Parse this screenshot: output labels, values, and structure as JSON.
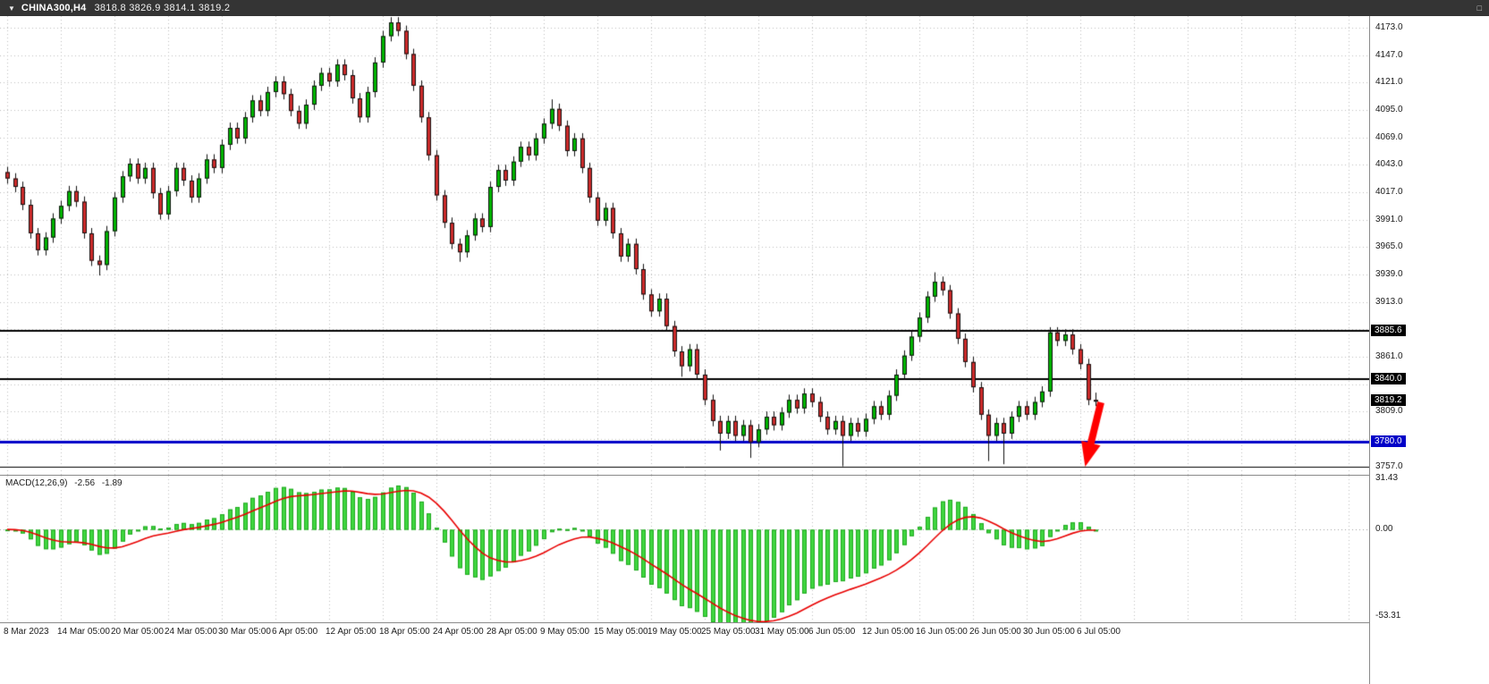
{
  "titlebar": {
    "symbol": "CHINA300,H4",
    "quotes": "3818.8 3826.9 3814.1 3819.2",
    "dropdown_icon": "symbol-dropdown",
    "window_button": "restore"
  },
  "chart_data": [
    {
      "type": "candlestick",
      "title": "CHINA300,H4",
      "timeframe": "H4",
      "x_tick_labels": [
        "8 Mar 2023",
        "14 Mar 05:00",
        "20 Mar 05:00",
        "24 Mar 05:00",
        "30 Mar 05:00",
        "6 Apr 05:00",
        "12 Apr 05:00",
        "18 Apr 05:00",
        "24 Apr 05:00",
        "28 Apr 05:00",
        "9 May 05:00",
        "15 May 05:00",
        "19 May 05:00",
        "25 May 05:00",
        "31 May 05:00",
        "6 Jun 05:00",
        "12 Jun 05:00",
        "16 Jun 05:00",
        "26 Jun 05:00",
        "30 Jun 05:00",
        "6 Jul 05:00"
      ],
      "x_tick_every_bars": 7,
      "y_ticks": [
        4173.0,
        4147.0,
        4121.0,
        4095.0,
        4069.0,
        4043.0,
        4017.0,
        3991.0,
        3965.0,
        3939.0,
        3913.0,
        3887.0,
        3861.0,
        3835.0,
        3809.0,
        3783.0,
        3757.0
      ],
      "ylim": [
        3749.0,
        4184.0
      ],
      "grid": true,
      "first_open": 4036,
      "closes": [
        4030,
        4022,
        4005,
        3978,
        3962,
        3974,
        3992,
        4004,
        4018,
        4008,
        3978,
        3952,
        3948,
        3980,
        4012,
        4032,
        4044,
        4030,
        4040,
        4016,
        3996,
        4018,
        4040,
        4028,
        4012,
        4030,
        4048,
        4040,
        4062,
        4078,
        4068,
        4088,
        4104,
        4094,
        4112,
        4122,
        4110,
        4094,
        4082,
        4100,
        4118,
        4130,
        4122,
        4138,
        4128,
        4106,
        4088,
        4112,
        4140,
        4165,
        4178,
        4170,
        4148,
        4118,
        4088,
        4052,
        4014,
        3988,
        3968,
        3960,
        3976,
        3992,
        3984,
        4022,
        4038,
        4028,
        4046,
        4060,
        4052,
        4068,
        4082,
        4096,
        4080,
        4056,
        4068,
        4040,
        4012,
        3990,
        4002,
        3978,
        3956,
        3968,
        3944,
        3920,
        3904,
        3916,
        3890,
        3866,
        3852,
        3868,
        3844,
        3820,
        3800,
        3788,
        3800,
        3786,
        3796,
        3780,
        3792,
        3804,
        3796,
        3808,
        3820,
        3812,
        3826,
        3818,
        3804,
        3792,
        3800,
        3786,
        3798,
        3790,
        3802,
        3814,
        3806,
        3824,
        3844,
        3862,
        3880,
        3898,
        3918,
        3932,
        3924,
        3902,
        3878,
        3856,
        3832,
        3806,
        3786,
        3798,
        3788,
        3804,
        3814,
        3806,
        3818,
        3828,
        3884,
        3876,
        3882,
        3868,
        3854,
        3820,
        3819.2
      ],
      "wick_overrides": {
        "12": {
          "low": 3938
        },
        "50": {
          "high": 4183
        },
        "59": {
          "low": 3951
        },
        "71": {
          "high": 4105
        },
        "88": {
          "low": 3842
        },
        "93": {
          "low": 3772
        },
        "97": {
          "low": 3765
        },
        "109": {
          "low": 3757
        },
        "121": {
          "high": 3941
        },
        "128": {
          "low": 3762
        },
        "130": {
          "low": 3759
        },
        "136": {
          "high": 3889
        },
        "138": {
          "high": 3887
        },
        "142": {
          "high": 3826.9,
          "low": 3814.1
        }
      },
      "colors": {
        "up": "#00B400",
        "down": "#CC2A2A",
        "outline": "#101010",
        "grid": "#BDBDBD"
      },
      "hlines": [
        {
          "price": 3885.6,
          "color": "#000000",
          "width": 2
        },
        {
          "price": 3840.0,
          "color": "#000000",
          "width": 2
        },
        {
          "price": 3780.0,
          "color": "#0000C8",
          "width": 3
        },
        {
          "price": 3757.0,
          "color": "#000000",
          "width": 1
        }
      ],
      "price_badges": [
        {
          "value": "3885.6",
          "bg": "#000000"
        },
        {
          "value": "3840.0",
          "bg": "#000000"
        },
        {
          "value": "3819.2",
          "bg": "#000000"
        },
        {
          "value": "3780.0",
          "bg": "#0000C8"
        }
      ],
      "annotation_arrow": {
        "color": "#FF0000",
        "x": 1231,
        "y_from": 450,
        "y_to": 524,
        "tilt_rad": 0.24
      }
    },
    {
      "type": "bar+line",
      "name": "MACD(12,26,9)",
      "params": {
        "fast": 12,
        "slow": 26,
        "signal": 9
      },
      "current_values": {
        "macd": "-2.56",
        "signal": "-1.89"
      },
      "y_tick_labels": [
        "31.43",
        "0.00",
        "-53.31"
      ],
      "y_ticks": [
        31.43,
        0.0,
        -53.31
      ],
      "ylim": [
        -57,
        33
      ],
      "histogram_color": "#3FD63F",
      "histogram_outline": "#1FA81F",
      "signal_color": "#E80000",
      "zero_line_color": "#9A9A9A",
      "derived": "MACD(12,26,9) histogram and signal computed from candlestick closes"
    }
  ]
}
